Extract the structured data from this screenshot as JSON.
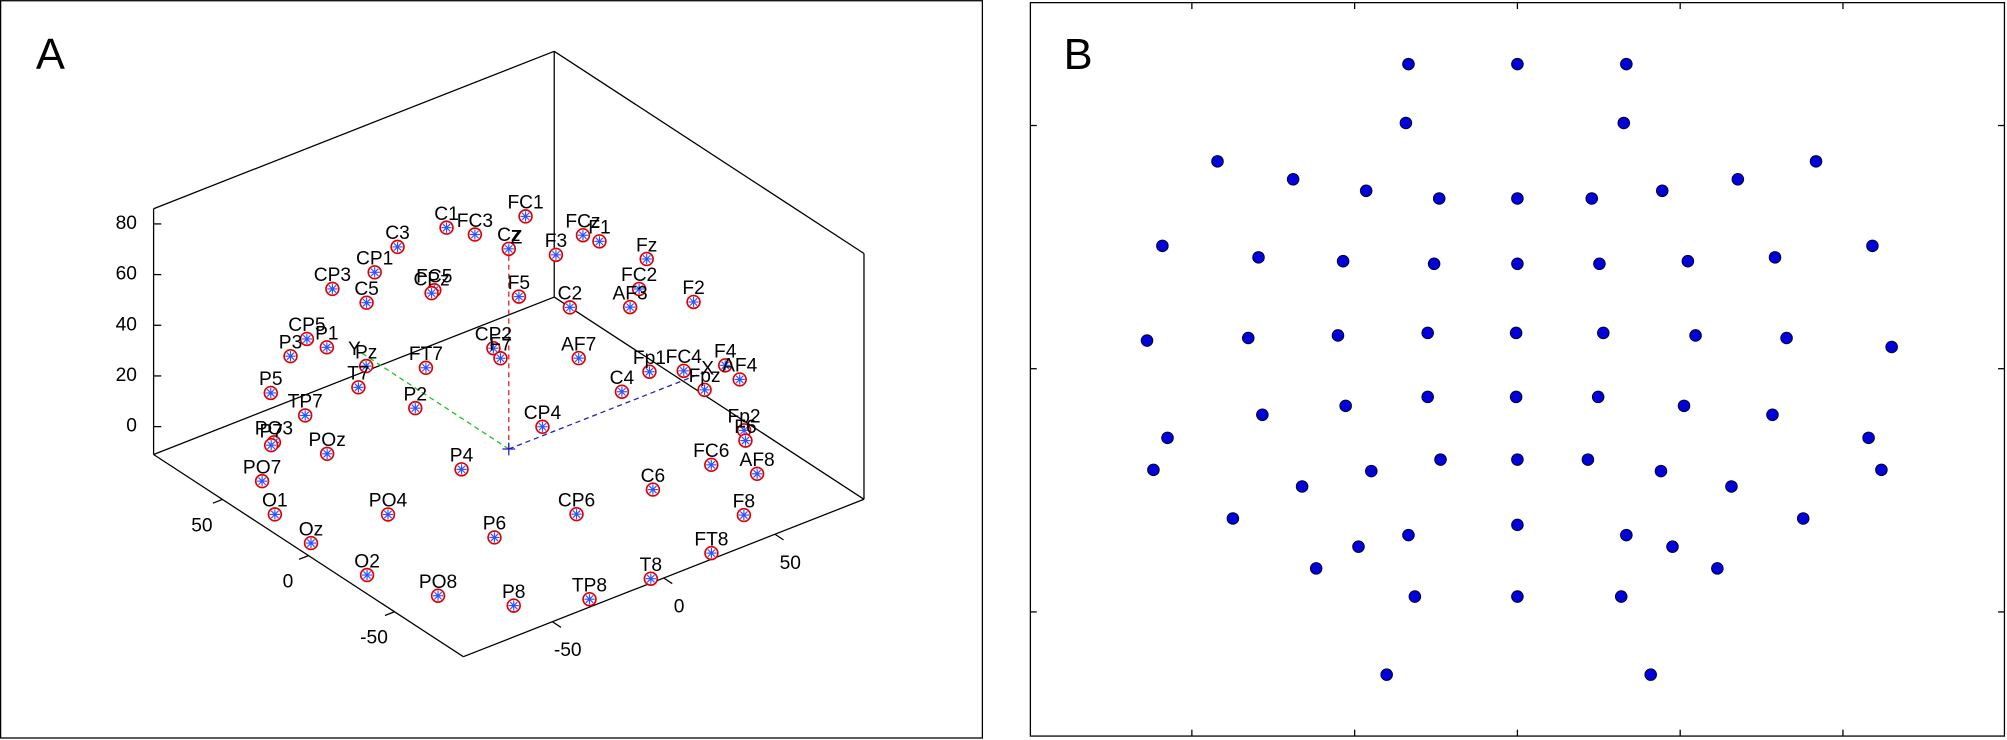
{
  "chart_data": [
    {
      "type": "scatter3d",
      "panel_label": "A",
      "x_axis_label": "X",
      "y_axis_label": "Y",
      "z_axis_label": "Z",
      "marker_edge_color": "#e00000",
      "marker_color": "#3050ff",
      "xlim": [
        -90,
        90
      ],
      "ylim": [
        -90,
        90
      ],
      "zlim": [
        -11,
        86
      ],
      "xticks": [
        -50,
        0,
        50
      ],
      "yticks": [
        -50,
        0,
        50
      ],
      "zticks": [
        0,
        20,
        40,
        60,
        80
      ],
      "points": {
        "labels": [
          "C1",
          "FC3",
          "FC1",
          "Cz",
          "FCz",
          "F1",
          "F3",
          "Fz",
          "C3",
          "CP1",
          "CP3",
          "C5",
          "FC5",
          "CPz",
          "F5",
          "FC2",
          "AF3",
          "F2",
          "C2",
          "CP5",
          "P1",
          "P3",
          "Pz",
          "FT7",
          "CP2",
          "F7",
          "AF7",
          "Fp1",
          "FC4",
          "F4",
          "AF4",
          "Fpz",
          "T7",
          "P5",
          "TP7",
          "P2",
          "C4",
          "CP4",
          "Fp2",
          "F6",
          "PO3",
          "P7",
          "POz",
          "P4",
          "FC6",
          "AF8",
          "C6",
          "PO7",
          "O1",
          "PO4",
          "CP6",
          "F8",
          "P6",
          "Oz",
          "FT8",
          "O2",
          "T8",
          "PO8",
          "P8",
          "TP8"
        ],
        "x": [
          -4,
          1,
          23,
          0,
          31,
          33,
          15,
          55,
          -26,
          -27,
          -46,
          -26,
          -18,
          -20,
          3,
          40,
          46,
          66,
          29,
          -42,
          -40,
          -54,
          -37,
          -21,
          -10,
          4,
          26,
          40,
          50,
          64,
          62,
          64,
          -32,
          -59,
          -59,
          -25,
          40,
          19,
          74,
          70,
          -63,
          -65,
          -53,
          -22,
          50,
          59,
          23,
          -83,
          -85,
          -62,
          -9,
          43,
          -42,
          -85,
          23,
          -83,
          -5,
          -72,
          -55,
          -31
        ],
        "y": [
          31,
          21,
          20,
          0,
          -3,
          -10,
          -8,
          -9,
          31,
          43,
          43,
          49,
          20,
          19,
          -2,
          -24,
          -11,
          -22,
          2,
          63,
          54,
          57,
          35,
          21,
          -4,
          10,
          -7,
          -30,
          -37,
          -43,
          -54,
          -31,
          46,
          62,
          42,
          22,
          -14,
          5,
          -41,
          -47,
          55,
          54,
          37,
          -1,
          -53,
          -68,
          -54,
          36,
          26,
          -10,
          -51,
          -81,
          -46,
          5,
          -88,
          -25,
          -89,
          -52,
          -74,
          -87
        ],
        "z": [
          75,
          75,
          75,
          79,
          75,
          75,
          75,
          60,
          75,
          60,
          60,
          45,
          60,
          60,
          60,
          60,
          45,
          45,
          45,
          30,
          30,
          30,
          30,
          30,
          45,
          30,
          30,
          30,
          30,
          30,
          30,
          15,
          15,
          15,
          15,
          15,
          15,
          0,
          0,
          0,
          0,
          0,
          0,
          0,
          0,
          0,
          0,
          0,
          -8,
          0,
          0,
          -5,
          0,
          -10,
          -10,
          -10,
          -10,
          -10,
          -10,
          -10
        ]
      }
    },
    {
      "type": "scatter",
      "panel_label": "B",
      "color": "#0000dd",
      "xlim": [
        -380,
        380
      ],
      "ylim": [
        -287,
        286
      ],
      "xticks": [
        -254,
        -127,
        0,
        127,
        254
      ],
      "yticks": [
        -190,
        0,
        190
      ],
      "x": [
        -85,
        0,
        85,
        -87,
        83,
        -234,
        233,
        -175,
        172,
        -118,
        113,
        -61,
        0,
        58,
        -277,
        277,
        -202,
        201,
        -136,
        133,
        -65,
        0,
        64,
        -70,
        -1,
        67,
        -140,
        139,
        -210,
        210,
        -289,
        292,
        -70,
        -1,
        63,
        -134,
        130,
        -199,
        199,
        -273,
        274,
        -60,
        0,
        55,
        -284,
        284,
        -114,
        112,
        -168,
        167,
        -222,
        223,
        0,
        -85,
        85,
        -124,
        121,
        -157,
        156,
        -80,
        0,
        81,
        -102,
        104
      ],
      "y": [
        238,
        238,
        238,
        192,
        192,
        162,
        162,
        148,
        148,
        139,
        139,
        133,
        133,
        133,
        96,
        96,
        87,
        87,
        84,
        84,
        82,
        82,
        82,
        28,
        28,
        28,
        26,
        26,
        24,
        24,
        22,
        17,
        -22,
        -22,
        -22,
        -29,
        -29,
        -36,
        -36,
        -54,
        -54,
        -71,
        -71,
        -71,
        -79,
        -79,
        -80,
        -80,
        -92,
        -92,
        -117,
        -117,
        -122,
        -130,
        -130,
        -139,
        -139,
        -156,
        -156,
        -178,
        -178,
        -178,
        -239,
        -239
      ]
    }
  ]
}
